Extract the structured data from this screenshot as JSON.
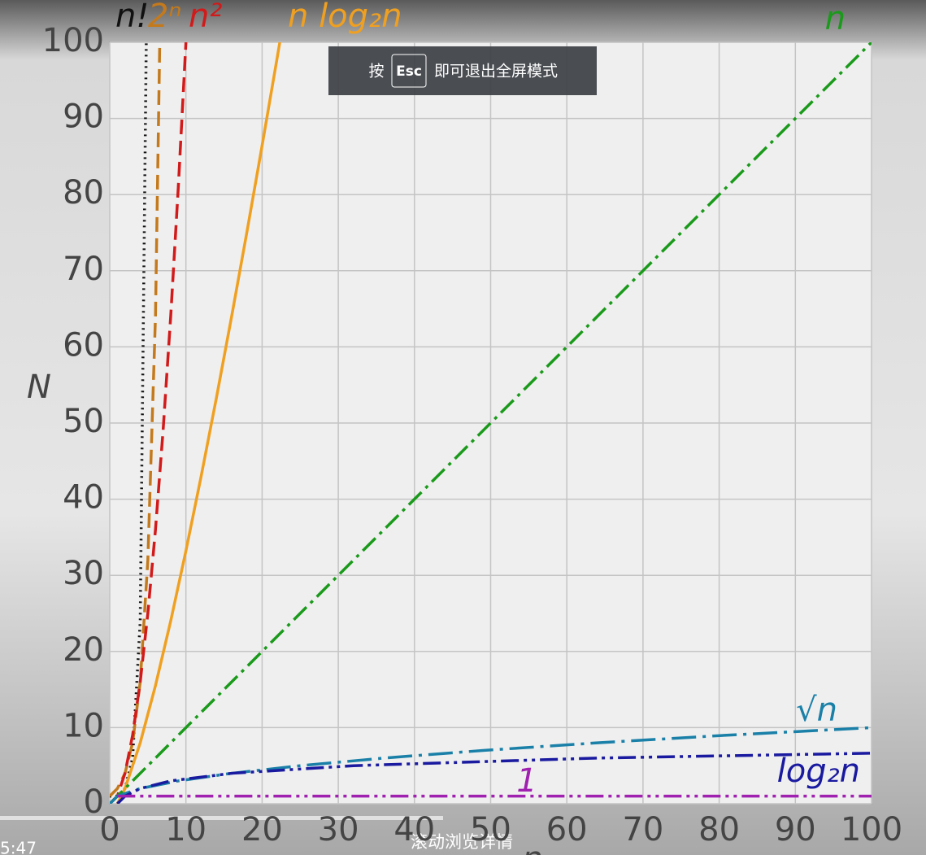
{
  "chart_data": {
    "type": "line",
    "x_label": "n",
    "y_label": "N",
    "xlim": [
      0,
      100
    ],
    "ylim": [
      0,
      100
    ],
    "xticks": [
      0,
      10,
      20,
      30,
      40,
      50,
      60,
      70,
      80,
      90,
      100
    ],
    "yticks": [
      0,
      10,
      20,
      30,
      40,
      50,
      60,
      70,
      80,
      90,
      100
    ],
    "grid": true,
    "series": [
      {
        "name": "n!",
        "color": "#111111",
        "dash": "dotted",
        "x": [
          0,
          1,
          2,
          3,
          4,
          5
        ],
        "values": [
          1,
          1,
          2,
          6,
          24,
          120
        ]
      },
      {
        "name": "2ⁿ",
        "color": "#c47a1c",
        "dash": "dashed",
        "x": [
          0,
          1,
          2,
          3,
          4,
          5,
          6,
          7
        ],
        "values": [
          1,
          2,
          4,
          8,
          16,
          32,
          64,
          128
        ]
      },
      {
        "name": "n²",
        "color": "#d21a1a",
        "dash": "dashed",
        "x": [
          0,
          1,
          2,
          3,
          4,
          5,
          6,
          7,
          8,
          9,
          10,
          11
        ],
        "values": [
          0,
          1,
          4,
          9,
          16,
          25,
          36,
          49,
          64,
          81,
          100,
          121
        ]
      },
      {
        "name": "n log₂n",
        "color": "#f0a020",
        "dash": "solid",
        "x": [
          1,
          2,
          4,
          6,
          8,
          10,
          12,
          14,
          16,
          18,
          20,
          22,
          23
        ],
        "values": [
          0,
          2,
          8,
          15.51,
          24,
          33.22,
          43.02,
          53.3,
          64,
          75.06,
          86.44,
          98.1,
          104.04
        ]
      },
      {
        "name": "n",
        "color": "#1a9a1a",
        "dash": "dashdot",
        "x": [
          0,
          100
        ],
        "values": [
          0,
          100
        ]
      },
      {
        "name": "√n",
        "color": "#1a80a8",
        "dash": "longdash",
        "x": [
          0,
          1,
          4,
          9,
          16,
          25,
          36,
          49,
          64,
          81,
          100
        ],
        "values": [
          0,
          1,
          2,
          3,
          4,
          5,
          6,
          7,
          8,
          9,
          10
        ]
      },
      {
        "name": "log₂n",
        "color": "#1a1aa0",
        "dash": "dashdotdot",
        "x": [
          1,
          2,
          4,
          8,
          16,
          32,
          64,
          100
        ],
        "values": [
          0,
          1,
          2,
          3,
          4,
          5,
          6,
          6.64
        ]
      },
      {
        "name": "1",
        "color": "#a020b0",
        "dash": "dashdotdot",
        "x": [
          1,
          100
        ],
        "values": [
          1,
          1
        ]
      }
    ]
  },
  "overlay": {
    "press": "按",
    "key": "Esc",
    "message": "即可退出全屏模式"
  },
  "player": {
    "time": "5:47",
    "hint": "滚动浏览详情"
  }
}
